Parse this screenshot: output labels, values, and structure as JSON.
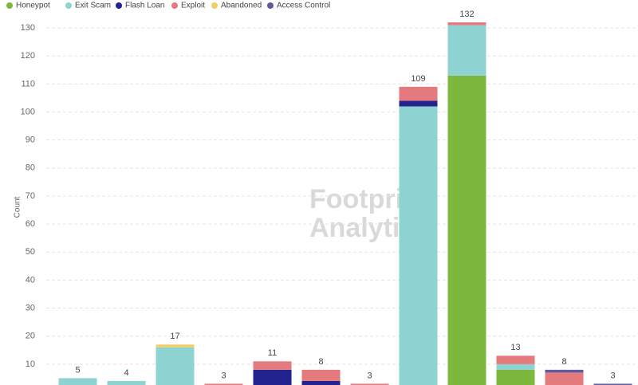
{
  "chart_data": {
    "type": "stacked-bar",
    "y_label": "Count",
    "watermark": [
      "Footprint",
      "Analytics"
    ],
    "categories": [
      null,
      null,
      null,
      null,
      null,
      null,
      null,
      null,
      null,
      null,
      null,
      null
    ],
    "series": [
      {
        "name": "Honeypot",
        "color": "#7cb83e",
        "values": [
          0,
          0,
          0,
          0,
          0,
          0,
          0,
          0,
          113,
          8,
          0,
          0
        ]
      },
      {
        "name": "Exit Scam",
        "color": "#8dd3d1",
        "values": [
          5,
          4,
          16,
          0,
          0,
          0,
          0,
          102,
          18,
          2,
          0,
          0
        ]
      },
      {
        "name": "Flash Loan",
        "color": "#232390",
        "values": [
          0,
          0,
          0,
          0,
          8,
          4,
          0,
          2,
          0,
          0,
          0,
          0
        ]
      },
      {
        "name": "Exploit",
        "color": "#e57a7e",
        "values": [
          0,
          0,
          0,
          3,
          3,
          4,
          3,
          5,
          1,
          3,
          7,
          0
        ]
      },
      {
        "name": "Abandoned",
        "color": "#f2cf6b",
        "values": [
          0,
          0,
          1,
          0,
          0,
          0,
          0,
          0,
          0,
          0,
          0,
          0
        ]
      },
      {
        "name": "Access Control",
        "color": "#5f5a9e",
        "values": [
          0,
          0,
          0,
          0,
          0,
          0,
          0,
          0,
          0,
          0,
          1,
          3
        ]
      }
    ],
    "totals": [
      5,
      4,
      17,
      3,
      11,
      8,
      3,
      109,
      132,
      13,
      8,
      3
    ],
    "ylim": [
      0,
      135
    ],
    "yticks": [
      10,
      20,
      30,
      40,
      50,
      60,
      70,
      80,
      90,
      100,
      110,
      120,
      130
    ],
    "grid": true
  }
}
